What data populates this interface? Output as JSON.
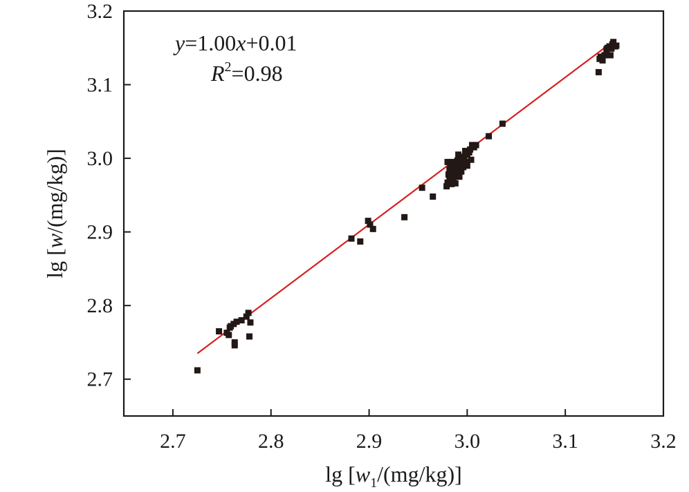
{
  "chart_data": {
    "type": "scatter",
    "xlim": [
      2.65,
      3.2
    ],
    "ylim": [
      2.65,
      3.2
    ],
    "x_ticks": [
      "2.7",
      "2.8",
      "2.9",
      "3.0",
      "3.1",
      "3.2"
    ],
    "y_ticks": [
      "2.7",
      "2.8",
      "2.9",
      "3.0",
      "3.1",
      "3.2"
    ],
    "xlabel": {
      "pre": "lg [",
      "var": "w",
      "sub": "1",
      "post": "/(mg/kg)]"
    },
    "ylabel": {
      "pre": "lg [",
      "var": "w",
      "post": "/(mg/kg)]"
    },
    "equation": {
      "y": "y",
      "mid": "=1.00",
      "x": "x",
      "post": "+0.01"
    },
    "r2": {
      "r": "R",
      "sup": "2",
      "post": "=0.98"
    },
    "fit": {
      "slope": 1.0,
      "intercept": 0.01,
      "x_range": [
        2.725,
        3.148
      ],
      "color": "#d42020"
    },
    "point_color": "#231815",
    "points": [
      [
        2.725,
        2.712
      ],
      [
        2.747,
        2.765
      ],
      [
        2.755,
        2.763
      ],
      [
        2.757,
        2.76
      ],
      [
        2.758,
        2.77
      ],
      [
        2.759,
        2.772
      ],
      [
        2.762,
        2.775
      ],
      [
        2.763,
        2.746
      ],
      [
        2.763,
        2.75
      ],
      [
        2.765,
        2.778
      ],
      [
        2.77,
        2.78
      ],
      [
        2.775,
        2.785
      ],
      [
        2.777,
        2.79
      ],
      [
        2.778,
        2.758
      ],
      [
        2.779,
        2.777
      ],
      [
        2.882,
        2.891
      ],
      [
        2.891,
        2.887
      ],
      [
        2.899,
        2.915
      ],
      [
        2.901,
        2.91
      ],
      [
        2.904,
        2.904
      ],
      [
        2.936,
        2.92
      ],
      [
        2.954,
        2.96
      ],
      [
        2.965,
        2.948
      ],
      [
        2.979,
        2.962
      ],
      [
        2.98,
        2.967
      ],
      [
        2.98,
        2.995
      ],
      [
        2.981,
        2.978
      ],
      [
        2.982,
        2.985
      ],
      [
        2.982,
        2.972
      ],
      [
        2.983,
        2.99
      ],
      [
        2.984,
        2.965
      ],
      [
        2.984,
        2.98
      ],
      [
        2.985,
        2.975
      ],
      [
        2.985,
        2.995
      ],
      [
        2.986,
        2.97
      ],
      [
        2.986,
        2.988
      ],
      [
        2.987,
        2.983
      ],
      [
        2.988,
        2.992
      ],
      [
        2.988,
        2.966
      ],
      [
        2.989,
        2.978
      ],
      [
        2.99,
        2.997
      ],
      [
        2.99,
        2.985
      ],
      [
        2.991,
        3.005
      ],
      [
        2.992,
        2.975
      ],
      [
        2.992,
        2.993
      ],
      [
        2.993,
        2.99
      ],
      [
        2.994,
        2.982
      ],
      [
        2.995,
        3.0
      ],
      [
        2.995,
        2.995
      ],
      [
        2.996,
        2.988
      ],
      [
        2.997,
        3.002
      ],
      [
        2.998,
        3.01
      ],
      [
        2.999,
        2.995
      ],
      [
        3.0,
        3.005
      ],
      [
        3.0,
        2.99
      ],
      [
        3.002,
        3.008
      ],
      [
        3.003,
        3.012
      ],
      [
        3.004,
        2.998
      ],
      [
        3.005,
        3.018
      ],
      [
        3.007,
        3.015
      ],
      [
        3.009,
        3.018
      ],
      [
        3.022,
        3.03
      ],
      [
        3.036,
        3.047
      ],
      [
        3.134,
        3.117
      ],
      [
        3.135,
        3.135
      ],
      [
        3.136,
        3.138
      ],
      [
        3.138,
        3.133
      ],
      [
        3.14,
        3.14
      ],
      [
        3.142,
        3.148
      ],
      [
        3.143,
        3.15
      ],
      [
        3.145,
        3.152
      ],
      [
        3.146,
        3.14
      ],
      [
        3.147,
        3.149
      ],
      [
        3.148,
        3.155
      ],
      [
        3.149,
        3.158
      ],
      [
        3.151,
        3.152
      ],
      [
        3.152,
        3.153
      ]
    ]
  }
}
